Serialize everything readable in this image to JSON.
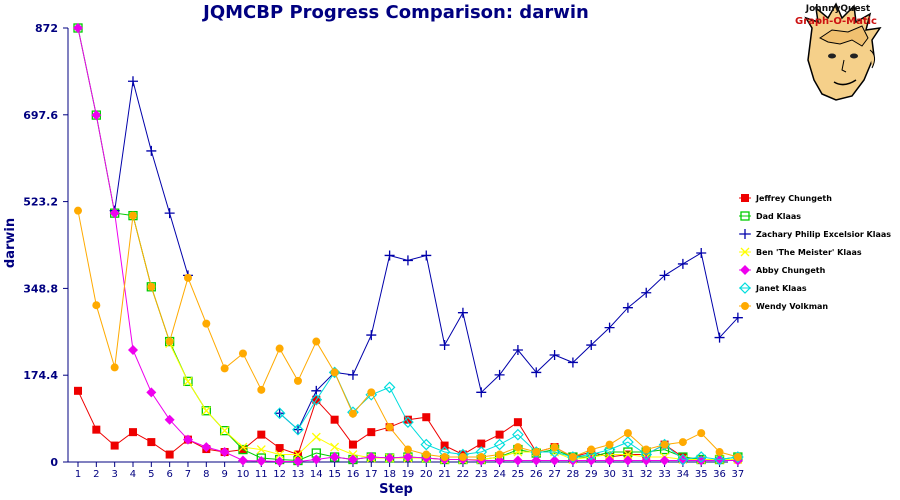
{
  "chart_data": {
    "type": "line",
    "title": "JQMCBP Progress Comparison: darwin",
    "xlabel": "Step",
    "ylabel": "darwin",
    "ylim": [
      0,
      872
    ],
    "yticks": [
      "0",
      "174.4",
      "348.8",
      "523.2",
      "697.6",
      "872"
    ],
    "x": [
      1,
      2,
      3,
      4,
      5,
      6,
      7,
      8,
      9,
      10,
      11,
      12,
      13,
      14,
      15,
      16,
      17,
      18,
      19,
      20,
      21,
      22,
      23,
      24,
      25,
      26,
      27,
      28,
      29,
      30,
      31,
      32,
      33,
      34,
      35,
      36,
      37
    ],
    "grid": false,
    "legend_position": "right",
    "series": [
      {
        "name": "Jeffrey Chungeth",
        "color": "#ee0000",
        "marker": "square",
        "values": [
          143,
          65,
          33,
          60,
          40,
          15,
          45,
          26,
          20,
          25,
          55,
          28,
          15,
          125,
          85,
          35,
          60,
          70,
          85,
          90,
          33,
          15,
          37,
          55,
          80,
          20,
          30,
          10,
          20,
          10,
          15,
          15,
          35,
          10,
          5,
          5,
          5
        ]
      },
      {
        "name": "Dad Klaas",
        "color": "#00cc00",
        "marker": "square-open",
        "values": [
          872,
          697,
          500,
          495,
          352,
          242,
          162,
          103,
          63,
          25,
          8,
          5,
          3,
          18,
          10,
          5,
          10,
          8,
          10,
          8,
          5,
          5,
          5,
          10,
          25,
          18,
          25,
          10,
          10,
          20,
          20,
          20,
          25,
          10,
          5,
          5,
          10
        ]
      },
      {
        "name": "Zachary Philip Excelsior Klaas",
        "color": "#0000aa",
        "marker": "plus",
        "values": [
          null,
          null,
          505,
          765,
          625,
          500,
          375,
          null,
          null,
          null,
          null,
          98,
          65,
          143,
          180,
          175,
          255,
          415,
          405,
          415,
          235,
          300,
          140,
          175,
          225,
          180,
          215,
          200,
          235,
          270,
          310,
          340,
          375,
          398,
          420,
          250,
          290
        ]
      },
      {
        "name": "Ben 'The Meister' Klaas",
        "color": "#ffff00",
        "marker": "cross",
        "values": [
          null,
          null,
          null,
          null,
          null,
          238,
          162,
          103,
          63,
          30,
          25,
          15,
          15,
          50,
          30,
          15,
          8,
          8,
          8,
          8,
          5,
          5,
          5,
          10,
          20,
          20,
          20,
          5,
          10,
          15,
          15,
          10,
          10,
          5,
          5,
          5,
          5
        ]
      },
      {
        "name": "Abby Chungeth",
        "color": "#ee00ee",
        "marker": "diamond",
        "values": [
          872,
          697,
          500,
          225,
          140,
          85,
          45,
          30,
          20,
          3,
          2,
          1,
          1,
          5,
          10,
          5,
          10,
          8,
          10,
          8,
          5,
          5,
          3,
          3,
          3,
          3,
          3,
          3,
          3,
          3,
          3,
          3,
          3,
          3,
          3,
          3,
          3
        ]
      },
      {
        "name": "Janet Klaas",
        "color": "#00dddd",
        "marker": "diamond-open",
        "values": [
          null,
          null,
          null,
          null,
          null,
          null,
          null,
          null,
          null,
          null,
          null,
          98,
          65,
          125,
          180,
          100,
          135,
          150,
          80,
          35,
          20,
          15,
          20,
          35,
          55,
          20,
          20,
          10,
          15,
          25,
          40,
          15,
          35,
          5,
          10,
          5,
          10
        ]
      },
      {
        "name": "Wendy Volkman",
        "color": "#ffaa00",
        "marker": "circle",
        "values": [
          505,
          315,
          190,
          495,
          352,
          242,
          370,
          278,
          188,
          218,
          145,
          228,
          163,
          242,
          180,
          97,
          140,
          70,
          25,
          15,
          10,
          10,
          10,
          15,
          30,
          20,
          30,
          10,
          25,
          35,
          58,
          25,
          35,
          40,
          58,
          20,
          10
        ]
      }
    ]
  },
  "logo": {
    "top_text": "JohnnyQuest",
    "bottom_text": "Graph-O-Matic"
  }
}
